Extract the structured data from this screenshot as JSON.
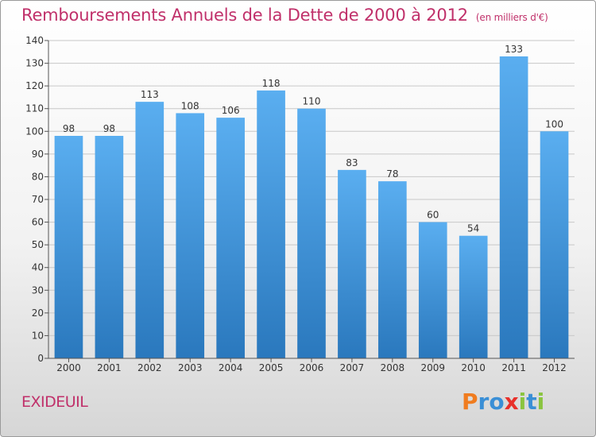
{
  "header": {
    "title": "Remboursements Annuels de la Dette de 2000 à 2012",
    "unit": "(en milliers d'€)"
  },
  "footer": {
    "commune": "EXIDEUIL",
    "logo_letters": [
      "P",
      "r",
      "o",
      "x",
      "i",
      "t",
      "i"
    ],
    "logo_colors": [
      "#f07c1f",
      "#3a8fd6",
      "#3a8fd6",
      "#e8302a",
      "#8ac43f",
      "#3a8fd6",
      "#8ac43f"
    ]
  },
  "chart_data": {
    "type": "bar",
    "categories": [
      "2000",
      "2001",
      "2002",
      "2003",
      "2004",
      "2005",
      "2006",
      "2007",
      "2008",
      "2009",
      "2010",
      "2011",
      "2012"
    ],
    "values": [
      98,
      98,
      113,
      108,
      106,
      118,
      110,
      83,
      78,
      60,
      54,
      133,
      100
    ],
    "ylim": [
      0,
      140
    ],
    "yticks": [
      0,
      10,
      20,
      30,
      40,
      50,
      60,
      70,
      80,
      90,
      100,
      110,
      120,
      130,
      140
    ],
    "grid": true,
    "bar_color": "#3f97dc"
  }
}
